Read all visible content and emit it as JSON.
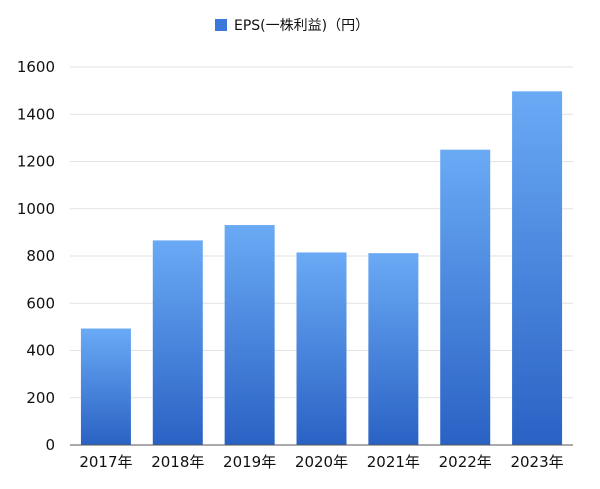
{
  "chart_data": {
    "type": "bar",
    "categories": [
      "2017年",
      "2018年",
      "2019年",
      "2020年",
      "2021年",
      "2022年",
      "2023年"
    ],
    "series": [
      {
        "name": "EPS(一株利益)（円）",
        "values": [
          493,
          866,
          931,
          815,
          812,
          1250,
          1497
        ]
      }
    ],
    "ylim": [
      0,
      1600
    ],
    "yticks": [
      0,
      200,
      400,
      600,
      800,
      1000,
      1200,
      1400,
      1600
    ],
    "grid": true,
    "legend": "top-center",
    "colors": {
      "bar_top": "#6aaaf5",
      "bar_bottom": "#2a62c4",
      "legend_swatch": "#3b78dc"
    }
  }
}
